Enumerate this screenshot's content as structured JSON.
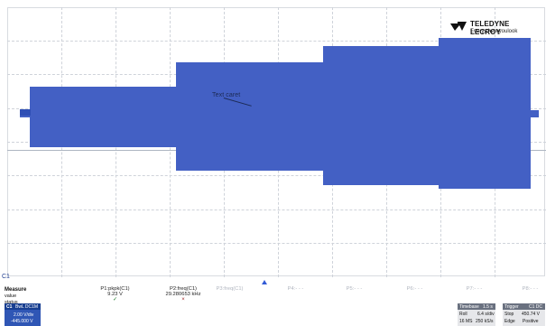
{
  "brand": {
    "name": "TELEDYNE LECROY",
    "tagline": "Everywhereyoulook"
  },
  "trace_note": "Text caret",
  "measure": {
    "title": "Measure",
    "rows": [
      "value",
      "status"
    ],
    "params": [
      {
        "name": "P1:pkpk(C1)",
        "value": "9.23 V",
        "status": "✓"
      },
      {
        "name": "P2:freq(C1)",
        "value": "29.280653 kHz",
        "status": "×"
      },
      {
        "name": "P3:freq(C1)",
        "value": "",
        "status": ""
      },
      {
        "name": "P4:- - -",
        "value": "",
        "status": ""
      },
      {
        "name": "P5:- - -",
        "value": "",
        "status": ""
      },
      {
        "name": "P6:- - -",
        "value": "",
        "status": ""
      },
      {
        "name": "P7:- - -",
        "value": "",
        "status": ""
      },
      {
        "name": "P8:- - -",
        "value": "",
        "status": ""
      }
    ]
  },
  "channel": {
    "label": "C1",
    "mode": "BwL DC1M",
    "vdiv": "2.00 V/div",
    "offset": "-445.000 V"
  },
  "timebase": {
    "label": "Timebase",
    "value": "1.5 s",
    "mode": "Roll",
    "tdiv": "6.4 s/div",
    "samples": "16 MS",
    "rate": "250 kS/s"
  },
  "trigger": {
    "label": "Trigger",
    "channel": "C1 DC",
    "type": "Stop",
    "level": "450.74 V",
    "edge": "Edge",
    "slope": "Positive"
  }
}
